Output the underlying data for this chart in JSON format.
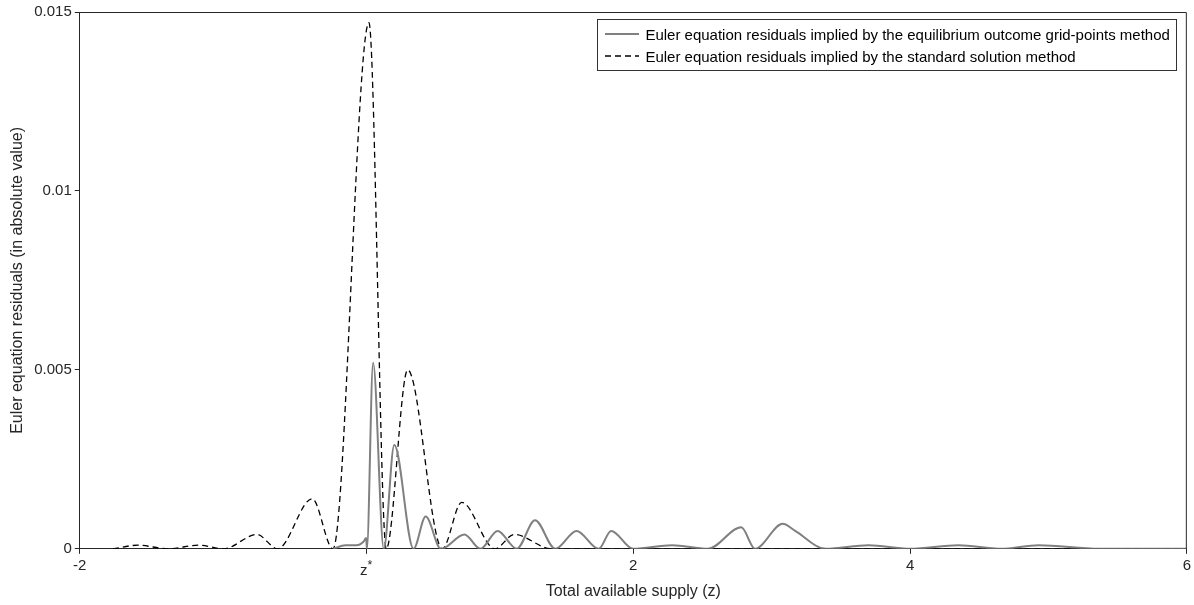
{
  "chart_data": {
    "type": "line",
    "xlabel": "Total available supply (z)",
    "ylabel": "Euler equation residuals (in absolute value)",
    "xlim": [
      -2,
      6
    ],
    "xticks": [
      -2,
      {
        "value": 0.07,
        "label": "z$^{*}$"
      },
      2,
      4,
      6
    ],
    "ylim": [
      0,
      0.015
    ],
    "yticks": [
      0,
      0.005,
      0.01,
      0.015
    ],
    "grid": false,
    "legend": "top right",
    "marker": "none",
    "series": [
      {
        "name": "Euler equation residuals implied by the equilibrium outcome grid-points method",
        "color": "#808080",
        "line_style": "solid",
        "x": [
          -0.17,
          -0.08,
          0.0,
          0.05,
          0.07,
          0.075,
          0.12,
          0.197,
          0.273,
          0.412,
          0.5,
          0.61,
          0.78,
          0.895,
          1.02,
          1.158,
          1.29,
          1.436,
          1.59,
          1.75,
          1.84,
          2.0,
          2.28,
          2.54,
          2.78,
          2.88,
          3.08,
          3.17,
          3.39,
          3.7,
          4.0,
          4.35,
          4.66,
          4.93,
          5.37,
          6
        ],
        "values": [
          0,
          0.0001,
          0.0001,
          0.0002,
          0.0003,
          0,
          0.0052,
          0,
          0.0029,
          0,
          0.0009,
          0,
          0.0004,
          0,
          0.0005,
          0,
          0.0008,
          0,
          0.0005,
          0,
          0.0005,
          0,
          0.0001,
          0,
          0.0006,
          0,
          0.0007,
          0.0005,
          0,
          0.0001,
          0,
          0.0001,
          0,
          0.0001,
          0,
          0
        ]
      },
      {
        "name": "Euler equation residuals implied by the standard solution method",
        "color": "#000000",
        "line_style": "dashed",
        "x": [
          -1.76,
          -1.58,
          -1.36,
          -1.14,
          -0.96,
          -0.72,
          -0.57,
          -0.32,
          -0.17,
          0.09,
          0.215,
          0.37,
          0.62,
          0.76,
          1.0,
          1.14,
          1.41,
          6
        ],
        "values": [
          0,
          0.0001,
          0,
          0.0001,
          0,
          0.0004,
          0,
          0.0014,
          0,
          0.0147,
          0,
          0.005,
          0,
          0.0013,
          0,
          0.0004,
          0,
          0
        ]
      }
    ]
  }
}
